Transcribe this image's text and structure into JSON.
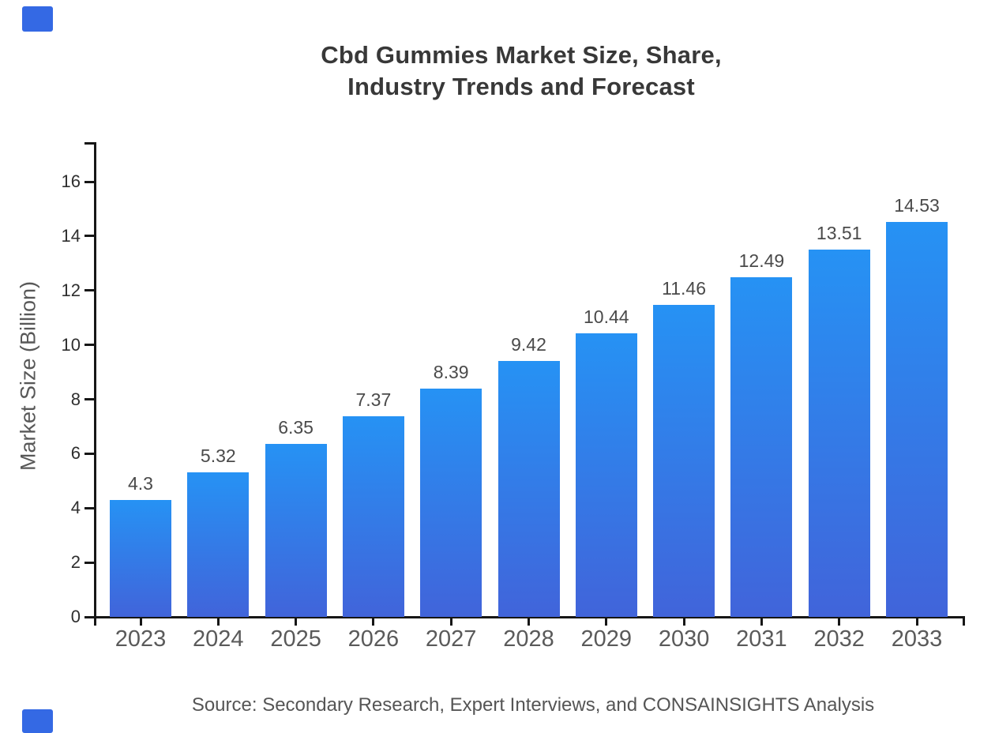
{
  "title": {
    "line1": "Cbd Gummies Market Size, Share,",
    "line2": "Industry Trends and Forecast"
  },
  "y_axis_title": "Market Size (Billion)",
  "source": "Source: Secondary Research, Expert Interviews, and CONSAINSIGHTS Analysis",
  "decor": {
    "accent_color": "#3469e4"
  },
  "chart_data": {
    "type": "bar",
    "title": "Cbd Gummies Market Size, Share, Industry Trends and Forecast",
    "xlabel": "",
    "ylabel": "Market Size (Billion)",
    "categories": [
      "2023",
      "2024",
      "2025",
      "2026",
      "2027",
      "2028",
      "2029",
      "2030",
      "2031",
      "2032",
      "2033"
    ],
    "values": [
      4.3,
      5.32,
      6.35,
      7.37,
      8.39,
      9.42,
      10.44,
      11.46,
      12.49,
      13.51,
      14.53
    ],
    "value_labels": [
      "4.3",
      "5.32",
      "6.35",
      "7.37",
      "8.39",
      "9.42",
      "10.44",
      "11.46",
      "12.49",
      "13.51",
      "14.53"
    ],
    "yticks": [
      0,
      2,
      4,
      6,
      8,
      10,
      12,
      14,
      16
    ],
    "ylim": [
      0,
      17.5
    ],
    "grid": false,
    "legend": "none",
    "bar_color_top": "#2692f4",
    "bar_color_bottom": "#4164da",
    "axis_color": "#161616"
  }
}
